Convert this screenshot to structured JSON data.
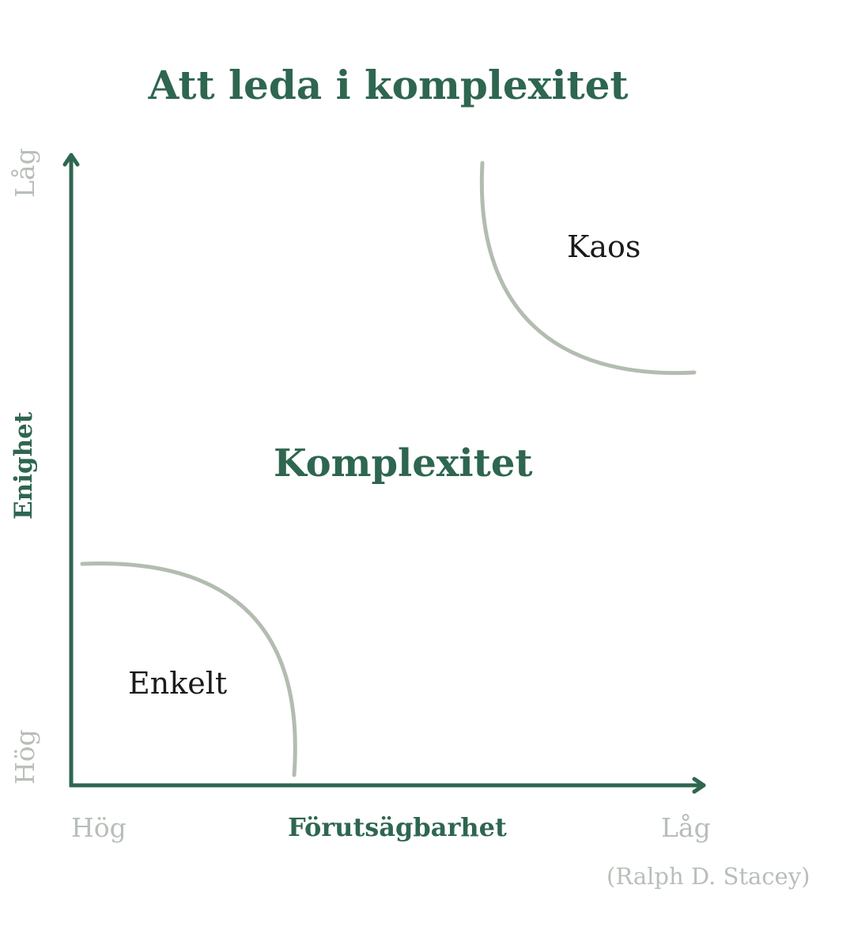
{
  "title": "Att leda i komplexitet",
  "axes": {
    "x": {
      "label": "Förutsägbarhet",
      "low_end": "Hög",
      "high_end": "Låg"
    },
    "y": {
      "label": "Enighet",
      "low_end": "Hög",
      "high_end": "Låg"
    }
  },
  "regions": {
    "simple": "Enkelt",
    "complex": "Komplexitet",
    "chaos": "Kaos"
  },
  "source": "(Ralph D. Stacey)",
  "colors": {
    "primary": "#2e6650",
    "muted": "#b7bfb8",
    "curve": "#b2bdb0",
    "region_text": "#1b1b1b"
  }
}
